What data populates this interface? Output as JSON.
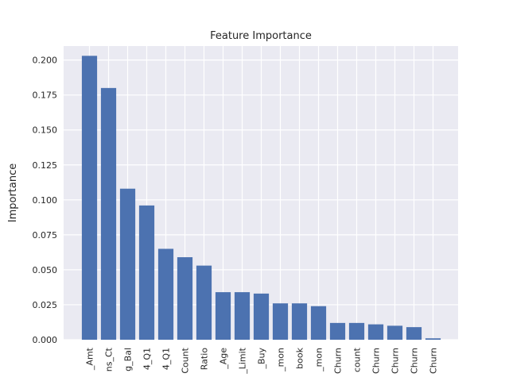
{
  "chart_data": {
    "type": "bar",
    "title": "Feature Importance",
    "xlabel": "",
    "ylabel": "Importance",
    "ylim": [
      0,
      0.21
    ],
    "yticks": [
      0.0,
      0.025,
      0.05,
      0.075,
      0.1,
      0.125,
      0.15,
      0.175,
      0.2
    ],
    "ytick_labels": [
      "0.000",
      "0.025",
      "0.050",
      "0.075",
      "0.100",
      "0.125",
      "0.150",
      "0.175",
      "0.200"
    ],
    "grid": true,
    "bar_color": "#4c72b0",
    "plot_background": "#eaeaf2",
    "categories": [
      "_Amt",
      "ns_Ct",
      "g_Bal",
      "4_Q1",
      "4_Q1",
      "Count",
      "Ratio",
      "_Age",
      "_Limit",
      "_Buy",
      "_mon",
      "book",
      "_mon",
      "Churn",
      "count",
      "Churn",
      "Churn",
      "Churn",
      "Churn"
    ],
    "values": [
      0.203,
      0.18,
      0.108,
      0.096,
      0.065,
      0.059,
      0.053,
      0.034,
      0.034,
      0.033,
      0.026,
      0.026,
      0.024,
      0.012,
      0.012,
      0.011,
      0.01,
      0.009,
      0.001
    ]
  }
}
